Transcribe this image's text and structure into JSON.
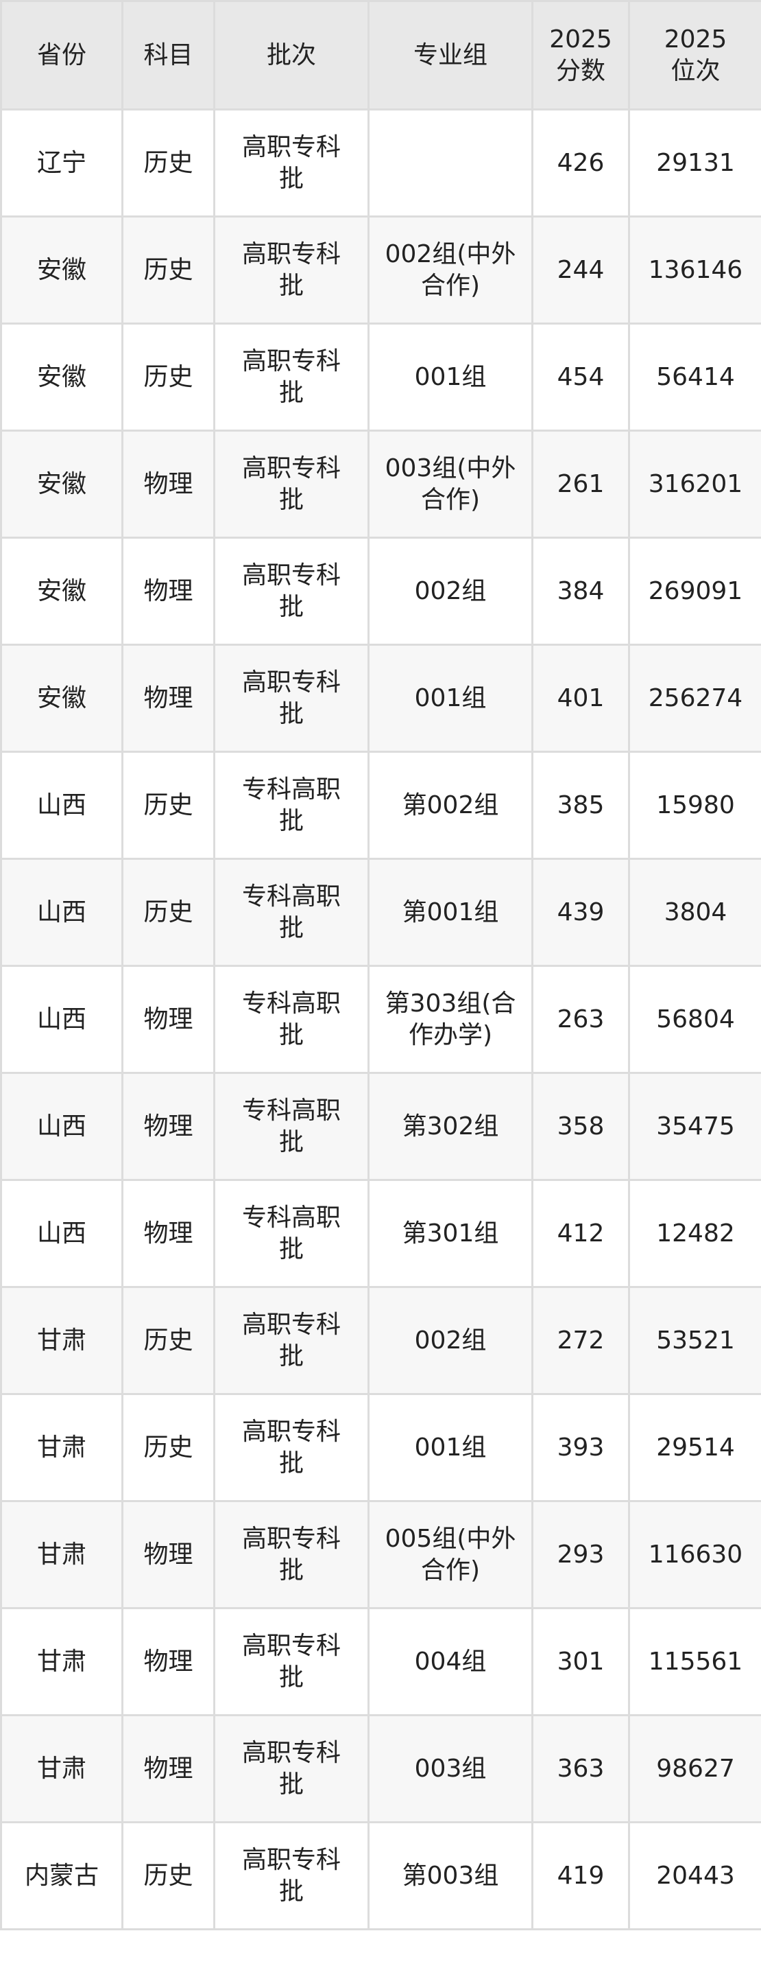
{
  "headers": [
    "省份",
    "科目",
    "批次",
    "专业组",
    "2025\n分数",
    "2025\n位次"
  ],
  "header_lines": [
    [
      "省份"
    ],
    [
      "科目"
    ],
    [
      "批次"
    ],
    [
      "专业组"
    ],
    [
      "2025",
      "分数"
    ],
    [
      "2025",
      "位次"
    ]
  ],
  "rows": [
    [
      "辽宁",
      "历史",
      "高职专科批",
      "",
      "426",
      "29131"
    ],
    [
      "安徽",
      "历史",
      "高职专科批",
      "002组(中外合作)",
      "244",
      "136146"
    ],
    [
      "安徽",
      "历史",
      "高职专科批",
      "001组",
      "454",
      "56414"
    ],
    [
      "安徽",
      "物理",
      "高职专科批",
      "003组(中外合作)",
      "261",
      "316201"
    ],
    [
      "安徽",
      "物理",
      "高职专科批",
      "002组",
      "384",
      "269091"
    ],
    [
      "安徽",
      "物理",
      "高职专科批",
      "001组",
      "401",
      "256274"
    ],
    [
      "山西",
      "历史",
      "专科高职批",
      "第002组",
      "385",
      "15980"
    ],
    [
      "山西",
      "历史",
      "专科高职批",
      "第001组",
      "439",
      "3804"
    ],
    [
      "山西",
      "物理",
      "专科高职批",
      "第303组(合作办学)",
      "263",
      "56804"
    ],
    [
      "山西",
      "物理",
      "专科高职批",
      "第302组",
      "358",
      "35475"
    ],
    [
      "山西",
      "物理",
      "专科高职批",
      "第301组",
      "412",
      "12482"
    ],
    [
      "甘肃",
      "历史",
      "高职专科批",
      "002组",
      "272",
      "53521"
    ],
    [
      "甘肃",
      "历史",
      "高职专科批",
      "001组",
      "393",
      "29514"
    ],
    [
      "甘肃",
      "物理",
      "高职专科批",
      "005组(中外合作)",
      "293",
      "116630"
    ],
    [
      "甘肃",
      "物理",
      "高职专科批",
      "004组",
      "301",
      "115561"
    ],
    [
      "甘肃",
      "物理",
      "高职专科批",
      "003组",
      "363",
      "98627"
    ],
    [
      "内蒙古",
      "历史",
      "高职专科批",
      "第003组",
      "419",
      "20443"
    ]
  ],
  "colors": {
    "header_bg": "#e8e8e8",
    "alt_row_bg": "#f7f7f7",
    "border": "#dcdcdc"
  }
}
